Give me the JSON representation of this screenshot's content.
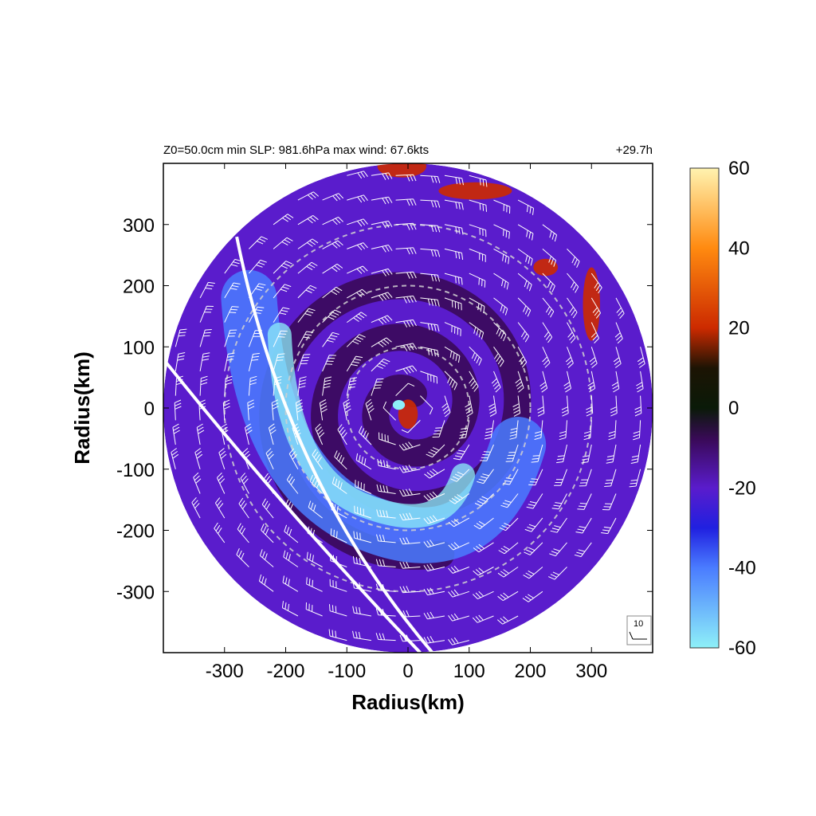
{
  "header": {
    "left": "Z0=50.0cm  min SLP: 981.6hPa   max wind: 67.6kts",
    "right": "+29.7h"
  },
  "chart_data": {
    "type": "heatmap",
    "xlabel": "Radius(km)",
    "ylabel": "Radius(km)",
    "xlim": [
      -400,
      400
    ],
    "ylim": [
      -400,
      400
    ],
    "x_ticks": [
      -300,
      -200,
      -100,
      0,
      100,
      200,
      300
    ],
    "y_ticks": [
      300,
      200,
      100,
      0,
      -100,
      -200,
      -300
    ],
    "domain_radius_km": 400,
    "range_rings_km": [
      100,
      200,
      300
    ],
    "colorbar": {
      "range": [
        -60,
        60
      ],
      "ticks": [
        60,
        40,
        20,
        0,
        -20,
        -40,
        -60
      ],
      "stops": [
        {
          "value": -60,
          "color": "#8ef0f8"
        },
        {
          "value": -40,
          "color": "#4a7cff"
        },
        {
          "value": -30,
          "color": "#2020e0"
        },
        {
          "value": -20,
          "color": "#5a1ccc"
        },
        {
          "value": -8,
          "color": "#3a0a5a"
        },
        {
          "value": 0,
          "color": "#0a1a08"
        },
        {
          "value": 10,
          "color": "#1c1404"
        },
        {
          "value": 20,
          "color": "#cc2a00"
        },
        {
          "value": 40,
          "color": "#ff8a10"
        },
        {
          "value": 60,
          "color": "#fff3b0"
        }
      ]
    },
    "wind_barb_reference": {
      "label": "10",
      "unit": "kts"
    },
    "colors": {
      "barb": "#ffffff",
      "ring": "#d0d0d0",
      "track_line": "#ffffff",
      "frame": "#000000"
    }
  }
}
